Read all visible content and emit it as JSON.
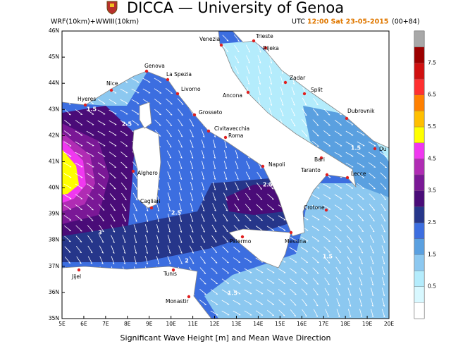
{
  "header": {
    "title": "DICCA — University of Genoa",
    "model": "WRF(10km)+WWIII(10km)",
    "time_zone": "UTC",
    "time": "12:00 Sat 23-05-2015",
    "lead": "(00+84)"
  },
  "map": {
    "lat_labels": [
      "46N",
      "45N",
      "44N",
      "43N",
      "42N",
      "41N",
      "40N",
      "39N",
      "38N",
      "37N",
      "36N",
      "35N"
    ],
    "lon_labels": [
      "5E",
      "6E",
      "7E",
      "8E",
      "9E",
      "10E",
      "11E",
      "12E",
      "13E",
      "14E",
      "15E",
      "16E",
      "17E",
      "18E",
      "19E",
      "20E"
    ],
    "cities": [
      "Venezia",
      "Trieste",
      "Rijeka",
      "Genova",
      "La Spezia",
      "Nice",
      "Hyeres",
      "Livorno",
      "Zadar",
      "Ancona",
      "Split",
      "Grosseto",
      "Dubrovnik",
      "Civitavecchia",
      "Roma",
      "Du",
      "Alghero",
      "Bari",
      "Napoli",
      "Taranto",
      "Lecce",
      "Cagliari",
      "Crotone",
      "Palermo",
      "Messina",
      "Tunis",
      "Jijel",
      "Monastir"
    ],
    "contour_labels": [
      "2.5",
      "1.5",
      "2.5",
      "2.5",
      "3",
      "1.5",
      "1.5",
      "2",
      "1.5"
    ]
  },
  "colorbar": {
    "labels": [
      "0.5",
      "1.5",
      "2.5",
      "3.5",
      "4.5",
      "5.5",
      "6.5",
      "7.5"
    ],
    "colors": [
      "#ffffff",
      "#d8f8ff",
      "#b4ecfc",
      "#8cc8f0",
      "#5aa0e0",
      "#3c6ee0",
      "#26368a",
      "#4a0c78",
      "#7a1896",
      "#b02cb4",
      "#f038f0",
      "#ffff00",
      "#ffbf00",
      "#ff8000",
      "#ff3030",
      "#d01010",
      "#9c0000",
      "#a8a8a8"
    ]
  },
  "caption": "Significant Wave Height [m] and Mean Wave Direction"
}
